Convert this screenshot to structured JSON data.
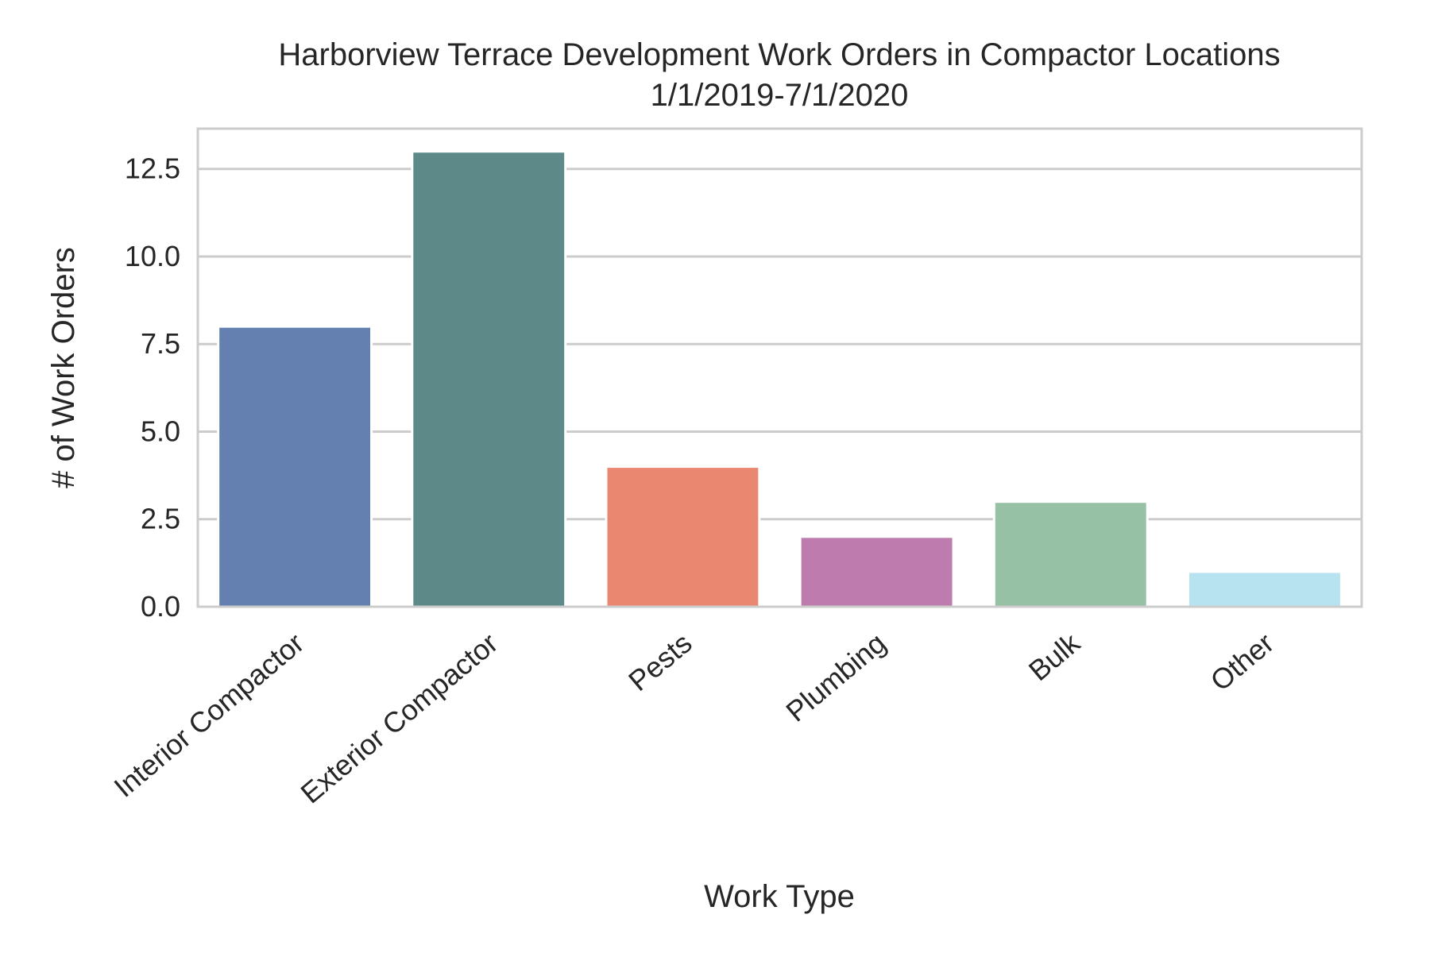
{
  "chart_data": {
    "type": "bar",
    "title": "Harborview Terrace Development Work Orders in Compactor Locations",
    "subtitle": "1/1/2019-7/1/2020",
    "xlabel": "Work Type",
    "ylabel": "# of Work Orders",
    "categories": [
      "Interior Compactor",
      "Exterior Compactor",
      "Pests",
      "Plumbing",
      "Bulk",
      "Other"
    ],
    "values": [
      8,
      13,
      4,
      2,
      3,
      1
    ],
    "colors": [
      "#6480B0",
      "#5D8A88",
      "#EA8770",
      "#BD7BAE",
      "#97C1A4",
      "#B7E3F0"
    ],
    "ylim": [
      0,
      13.65
    ],
    "yticks": [
      0.0,
      2.5,
      5.0,
      7.5,
      10.0,
      12.5
    ],
    "ytick_labels": [
      "0.0",
      "2.5",
      "5.0",
      "7.5",
      "10.0",
      "12.5"
    ],
    "grid": "horizontal",
    "grid_color": "#cccccc",
    "spine_color": "#cccccc",
    "text_color": "#262626",
    "legend": "none"
  }
}
